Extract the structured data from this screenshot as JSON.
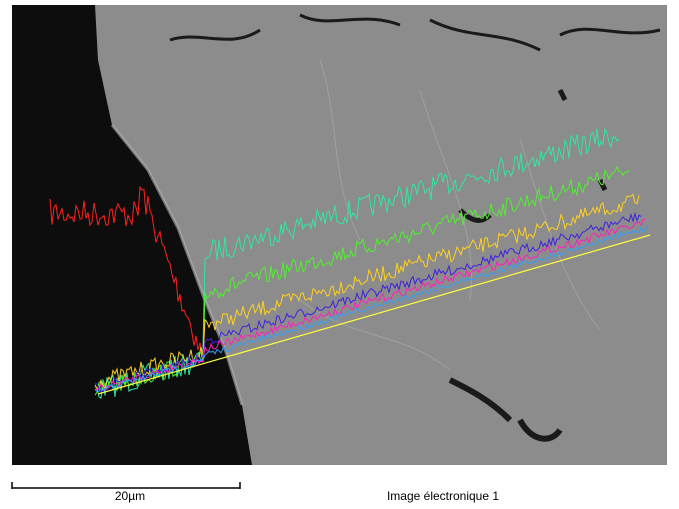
{
  "scale_bar": {
    "label": "20µm"
  },
  "caption": "Image électronique 1"
}
